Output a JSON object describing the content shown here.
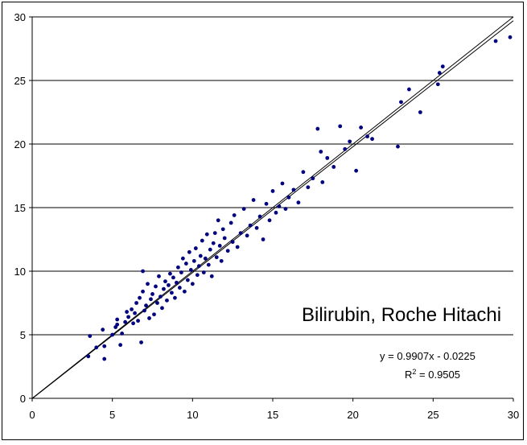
{
  "chart_data": {
    "type": "scatter",
    "title": "",
    "xlabel": "",
    "ylabel": "",
    "xlim": [
      0,
      30
    ],
    "ylim": [
      0,
      30
    ],
    "x_ticks": [
      "0",
      "5",
      "10",
      "15",
      "20",
      "25",
      "30"
    ],
    "y_ticks": [
      "0",
      "5",
      "10",
      "15",
      "20",
      "25",
      "30"
    ],
    "grid": "horizontal",
    "annotation": "Bilirubin, Roche Hitachi",
    "equation": "y = 0.9907x - 0.0225",
    "r_squared_label": "R",
    "r_squared_sup": "2",
    "r_squared_value": " = 0.9505",
    "trendline": {
      "slope": 0.9907,
      "intercept": -0.0225
    },
    "marker_color": "#000080",
    "series": [
      {
        "points": [
          [
            3.5,
            3.3
          ],
          [
            3.6,
            4.9
          ],
          [
            4.0,
            4.0
          ],
          [
            4.4,
            5.4
          ],
          [
            4.5,
            3.1
          ],
          [
            4.5,
            4.1
          ],
          [
            5.0,
            5.0
          ],
          [
            5.2,
            5.6
          ],
          [
            5.3,
            6.2
          ],
          [
            5.3,
            5.8
          ],
          [
            5.5,
            4.2
          ],
          [
            5.6,
            5.1
          ],
          [
            5.8,
            6.0
          ],
          [
            5.9,
            6.8
          ],
          [
            6.0,
            6.4
          ],
          [
            6.2,
            7.0
          ],
          [
            6.3,
            5.9
          ],
          [
            6.4,
            6.7
          ],
          [
            6.5,
            7.5
          ],
          [
            6.6,
            6.1
          ],
          [
            6.7,
            7.9
          ],
          [
            6.8,
            4.4
          ],
          [
            6.9,
            10.0
          ],
          [
            6.9,
            8.4
          ],
          [
            7.0,
            6.9
          ],
          [
            7.1,
            7.3
          ],
          [
            7.2,
            9.0
          ],
          [
            7.3,
            6.3
          ],
          [
            7.4,
            7.8
          ],
          [
            7.5,
            8.2
          ],
          [
            7.6,
            6.6
          ],
          [
            7.7,
            8.8
          ],
          [
            7.8,
            7.5
          ],
          [
            7.9,
            9.6
          ],
          [
            8.0,
            8.0
          ],
          [
            8.1,
            7.1
          ],
          [
            8.2,
            8.6
          ],
          [
            8.3,
            9.2
          ],
          [
            8.4,
            7.7
          ],
          [
            8.5,
            8.9
          ],
          [
            8.6,
            9.8
          ],
          [
            8.7,
            8.3
          ],
          [
            8.8,
            9.5
          ],
          [
            8.9,
            7.9
          ],
          [
            9.0,
            9.1
          ],
          [
            9.1,
            10.3
          ],
          [
            9.2,
            8.7
          ],
          [
            9.3,
            9.9
          ],
          [
            9.4,
            11.0
          ],
          [
            9.5,
            8.4
          ],
          [
            9.6,
            10.6
          ],
          [
            9.7,
            9.3
          ],
          [
            9.8,
            11.5
          ],
          [
            9.9,
            10.1
          ],
          [
            10.0,
            9.0
          ],
          [
            10.1,
            10.8
          ],
          [
            10.2,
            11.8
          ],
          [
            10.3,
            9.7
          ],
          [
            10.4,
            10.4
          ],
          [
            10.5,
            11.2
          ],
          [
            10.6,
            12.4
          ],
          [
            10.7,
            9.9
          ],
          [
            10.8,
            11.0
          ],
          [
            10.9,
            12.9
          ],
          [
            11.0,
            10.5
          ],
          [
            11.1,
            11.7
          ],
          [
            11.2,
            9.6
          ],
          [
            11.3,
            12.2
          ],
          [
            11.4,
            13.0
          ],
          [
            11.5,
            11.1
          ],
          [
            11.6,
            14.0
          ],
          [
            11.7,
            12.0
          ],
          [
            11.8,
            10.8
          ],
          [
            11.9,
            13.3
          ],
          [
            12.0,
            12.6
          ],
          [
            12.2,
            11.6
          ],
          [
            12.4,
            13.8
          ],
          [
            12.5,
            12.3
          ],
          [
            12.6,
            14.4
          ],
          [
            12.8,
            11.9
          ],
          [
            13.0,
            13.0
          ],
          [
            13.2,
            14.9
          ],
          [
            13.4,
            12.8
          ],
          [
            13.6,
            13.6
          ],
          [
            13.8,
            15.6
          ],
          [
            14.0,
            13.4
          ],
          [
            14.2,
            14.3
          ],
          [
            14.4,
            12.5
          ],
          [
            14.6,
            15.3
          ],
          [
            14.8,
            14.0
          ],
          [
            15.0,
            16.3
          ],
          [
            15.2,
            14.6
          ],
          [
            15.4,
            15.1
          ],
          [
            15.6,
            16.9
          ],
          [
            15.8,
            14.9
          ],
          [
            16.0,
            15.8
          ],
          [
            16.3,
            16.4
          ],
          [
            16.6,
            15.4
          ],
          [
            16.9,
            17.8
          ],
          [
            17.2,
            16.6
          ],
          [
            17.5,
            17.3
          ],
          [
            17.8,
            21.2
          ],
          [
            18.0,
            19.4
          ],
          [
            18.1,
            17.0
          ],
          [
            18.4,
            18.9
          ],
          [
            18.8,
            18.2
          ],
          [
            19.2,
            21.4
          ],
          [
            19.5,
            19.6
          ],
          [
            19.8,
            20.2
          ],
          [
            20.2,
            17.9
          ],
          [
            20.5,
            21.3
          ],
          [
            20.9,
            20.6
          ],
          [
            21.2,
            20.4
          ],
          [
            22.8,
            19.8
          ],
          [
            23.0,
            23.3
          ],
          [
            23.5,
            24.3
          ],
          [
            24.2,
            22.5
          ],
          [
            25.3,
            24.7
          ],
          [
            25.4,
            25.6
          ],
          [
            25.6,
            26.1
          ],
          [
            28.9,
            28.1
          ],
          [
            29.8,
            28.4
          ]
        ]
      }
    ]
  }
}
